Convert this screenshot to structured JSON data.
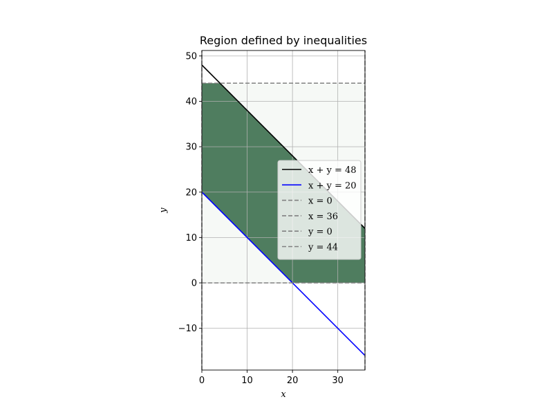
{
  "chart_data": {
    "type": "line",
    "title": "Region defined by inequalities",
    "xlabel": "x",
    "ylabel": "y",
    "xlim": [
      0,
      36
    ],
    "ylim": [
      -19.2,
      51.2
    ],
    "xticks": [
      0,
      10,
      20,
      30
    ],
    "yticks": [
      -10,
      0,
      10,
      20,
      30,
      40,
      50
    ],
    "grid": true,
    "legend_position": "center-right",
    "colors": {
      "feasible_fill": "#4f7d5f",
      "bound_fill": "#f6f9f6",
      "line_48": "#000000",
      "line_20": "#0000ff",
      "dashed": "#808080",
      "grid": "#b0b0b0"
    },
    "series": [
      {
        "name": "x + y = 48",
        "style": "solid",
        "color": "#000000",
        "x": [
          0,
          36
        ],
        "y": [
          48,
          12
        ]
      },
      {
        "name": "x + y = 20",
        "style": "solid",
        "color": "#0000ff",
        "x": [
          0,
          36
        ],
        "y": [
          20,
          -16
        ]
      },
      {
        "name": "x = 0",
        "style": "dashed",
        "color": "#808080",
        "x": [
          0,
          0
        ],
        "y": [
          -19.2,
          51.2
        ]
      },
      {
        "name": "x = 36",
        "style": "dashed",
        "color": "#808080",
        "x": [
          36,
          36
        ],
        "y": [
          -19.2,
          51.2
        ]
      },
      {
        "name": "y = 0",
        "style": "dashed",
        "color": "#808080",
        "x": [
          0,
          36
        ],
        "y": [
          0,
          0
        ]
      },
      {
        "name": "y = 44",
        "style": "dashed",
        "color": "#808080",
        "x": [
          0,
          36
        ],
        "y": [
          44,
          44
        ]
      }
    ],
    "regions": [
      {
        "name": "bounds",
        "polygon": [
          [
            0,
            0
          ],
          [
            36,
            0
          ],
          [
            36,
            44
          ],
          [
            0,
            44
          ]
        ]
      },
      {
        "name": "feasible",
        "polygon": [
          [
            0,
            20
          ],
          [
            20,
            0
          ],
          [
            36,
            0
          ],
          [
            36,
            12
          ],
          [
            4,
            44
          ],
          [
            0,
            44
          ]
        ]
      }
    ]
  }
}
